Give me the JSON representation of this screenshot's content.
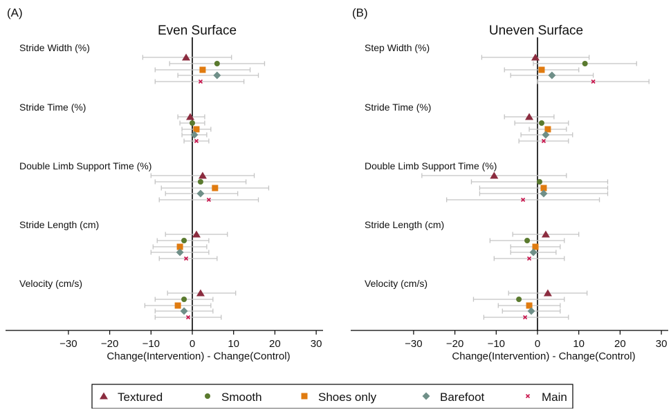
{
  "legend": {
    "entries": [
      {
        "name": "Textured",
        "color": "#8b2c3f",
        "marker": "triangle"
      },
      {
        "name": "Smooth",
        "color": "#5a7a2e",
        "marker": "circle"
      },
      {
        "name": "Shoes only",
        "color": "#e07b10",
        "marker": "square"
      },
      {
        "name": "Barefoot",
        "color": "#6f8f88",
        "marker": "diamond"
      },
      {
        "name": "Main",
        "color": "#c8144c",
        "marker": "x"
      }
    ]
  },
  "chart_data": [
    {
      "type": "forest",
      "panel_label": "(A)",
      "title": "Even Surface",
      "xlabel": "Change(Intervention) - Change(Control)",
      "xlim": [
        -47,
        32
      ],
      "xticks": [
        -30,
        -20,
        -10,
        0,
        10,
        20,
        30
      ],
      "categories": [
        {
          "label": "Stride Width (%)",
          "series": [
            {
              "name": "Textured",
              "est": -1.5,
              "low": -12,
              "high": 9.5
            },
            {
              "name": "Smooth",
              "est": 6,
              "low": -5.5,
              "high": 17.5
            },
            {
              "name": "Shoes only",
              "est": 2.5,
              "low": -9,
              "high": 14
            },
            {
              "name": "Barefoot",
              "est": 6,
              "low": -3.5,
              "high": 16
            },
            {
              "name": "Main",
              "est": 2,
              "low": -9,
              "high": 12.5
            }
          ]
        },
        {
          "label": "Stride Time (%)",
          "series": [
            {
              "name": "Textured",
              "est": -0.5,
              "low": -3.5,
              "high": 3
            },
            {
              "name": "Smooth",
              "est": 0,
              "low": -3,
              "high": 3
            },
            {
              "name": "Shoes only",
              "est": 1,
              "low": -2.5,
              "high": 4.5
            },
            {
              "name": "Barefoot",
              "est": 0.5,
              "low": -2.5,
              "high": 3.5
            },
            {
              "name": "Main",
              "est": 1,
              "low": -2,
              "high": 4
            }
          ]
        },
        {
          "label": "Double Limb Support Time (%)",
          "series": [
            {
              "name": "Textured",
              "est": 2.5,
              "low": -10,
              "high": 15
            },
            {
              "name": "Smooth",
              "est": 2,
              "low": -9,
              "high": 13
            },
            {
              "name": "Shoes only",
              "est": 5.5,
              "low": -7.5,
              "high": 18.5
            },
            {
              "name": "Barefoot",
              "est": 2,
              "low": -6.5,
              "high": 11
            },
            {
              "name": "Main",
              "est": 4,
              "low": -8,
              "high": 16
            }
          ]
        },
        {
          "label": "Stride Length (cm)",
          "series": [
            {
              "name": "Textured",
              "est": 1,
              "low": -6.5,
              "high": 8.5
            },
            {
              "name": "Smooth",
              "est": -2,
              "low": -8.5,
              "high": 4
            },
            {
              "name": "Shoes only",
              "est": -3,
              "low": -9.5,
              "high": 3.5
            },
            {
              "name": "Barefoot",
              "est": -3,
              "low": -10,
              "high": 4
            },
            {
              "name": "Main",
              "est": -1.5,
              "low": -8,
              "high": 6
            }
          ]
        },
        {
          "label": "Velocity (cm/s)",
          "series": [
            {
              "name": "Textured",
              "est": 2,
              "low": -6,
              "high": 10.5
            },
            {
              "name": "Smooth",
              "est": -2,
              "low": -9,
              "high": 5
            },
            {
              "name": "Shoes only",
              "est": -3.5,
              "low": -11.5,
              "high": 4.5
            },
            {
              "name": "Barefoot",
              "est": -2,
              "low": -9,
              "high": 5
            },
            {
              "name": "Main",
              "est": -1,
              "low": -9,
              "high": 7
            }
          ]
        }
      ]
    },
    {
      "type": "forest",
      "panel_label": "(B)",
      "title": "Uneven Surface",
      "xlabel": "Change(Intervention) - Change(Control)",
      "xlim": [
        -47,
        32
      ],
      "xticks": [
        -30,
        -20,
        -10,
        0,
        10,
        20,
        30
      ],
      "categories": [
        {
          "label": "Step Width (%)",
          "series": [
            {
              "name": "Textured",
              "est": -0.5,
              "low": -13.5,
              "high": 12.5
            },
            {
              "name": "Smooth",
              "est": 11.5,
              "low": -1,
              "high": 24
            },
            {
              "name": "Shoes only",
              "est": 1,
              "low": -8,
              "high": 10
            },
            {
              "name": "Barefoot",
              "est": 3.5,
              "low": -6.5,
              "high": 13.5
            },
            {
              "name": "Main",
              "est": 13.5,
              "low": 0,
              "high": 27
            }
          ]
        },
        {
          "label": "Stride Time (%)",
          "series": [
            {
              "name": "Textured",
              "est": -2,
              "low": -8,
              "high": 4
            },
            {
              "name": "Smooth",
              "est": 1,
              "low": -5.5,
              "high": 7.5
            },
            {
              "name": "Shoes only",
              "est": 2.5,
              "low": -2,
              "high": 7
            },
            {
              "name": "Barefoot",
              "est": 2,
              "low": -4,
              "high": 8.5
            },
            {
              "name": "Main",
              "est": 1.5,
              "low": -4.5,
              "high": 7.5
            }
          ]
        },
        {
          "label": "Double Limb Support Time (%)",
          "series": [
            {
              "name": "Textured",
              "est": -10.5,
              "low": -28,
              "high": 7
            },
            {
              "name": "Smooth",
              "est": 0.5,
              "low": -16,
              "high": 17
            },
            {
              "name": "Shoes only",
              "est": 1.5,
              "low": -14,
              "high": 17
            },
            {
              "name": "Barefoot",
              "est": 1.5,
              "low": -14,
              "high": 17
            },
            {
              "name": "Main",
              "est": -3.5,
              "low": -22,
              "high": 15
            }
          ]
        },
        {
          "label": "Stride Length (cm)",
          "series": [
            {
              "name": "Textured",
              "est": 2,
              "low": -6,
              "high": 10
            },
            {
              "name": "Smooth",
              "est": -2.5,
              "low": -11.5,
              "high": 6.5
            },
            {
              "name": "Shoes only",
              "est": -0.5,
              "low": -6.5,
              "high": 5.5
            },
            {
              "name": "Barefoot",
              "est": -1,
              "low": -6.5,
              "high": 4.5
            },
            {
              "name": "Main",
              "est": -2,
              "low": -10.5,
              "high": 6.5
            }
          ]
        },
        {
          "label": "Velocity (cm/s)",
          "series": [
            {
              "name": "Textured",
              "est": 2.5,
              "low": -7,
              "high": 12
            },
            {
              "name": "Smooth",
              "est": -4.5,
              "low": -15.5,
              "high": 6.5
            },
            {
              "name": "Shoes only",
              "est": -2,
              "low": -9.5,
              "high": 5.5
            },
            {
              "name": "Barefoot",
              "est": -1.5,
              "low": -8.5,
              "high": 5.5
            },
            {
              "name": "Main",
              "est": -3,
              "low": -13,
              "high": 7.5
            }
          ]
        }
      ]
    }
  ]
}
